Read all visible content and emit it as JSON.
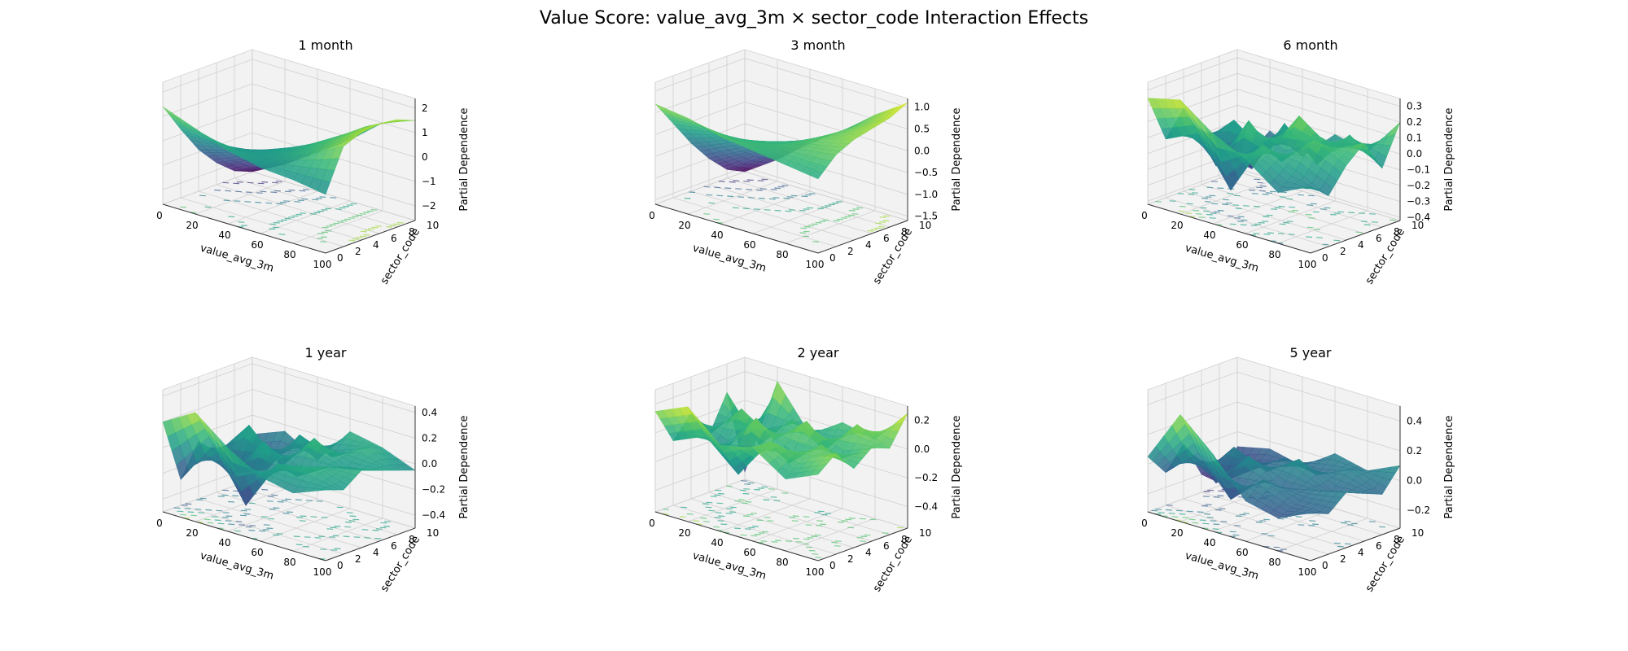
{
  "figure": {
    "title": "Value Score: value_avg_3m × sector_code Interaction Effects"
  },
  "colors": {
    "colormap": "viridis",
    "pane_fill": "#f2f2f2",
    "grid_line": "#d0d0d0",
    "axis_line": "#333333"
  },
  "chart_data": [
    {
      "type": "surface3d",
      "title": "1 month",
      "xlabel": "value_avg_3m",
      "ylabel": "sector_code",
      "zlabel": "Partial Dependence",
      "x_ticks": [
        "0",
        "20",
        "40",
        "60",
        "80",
        "100"
      ],
      "y_ticks": [
        "0",
        "2",
        "4",
        "6",
        "8",
        "10"
      ],
      "z_ticks": [
        "−2",
        "−1",
        "0",
        "1",
        "2"
      ],
      "xlim": [
        0,
        100
      ],
      "ylim": [
        0,
        10
      ],
      "zlim": [
        -2.6,
        2.4
      ],
      "x": [
        0,
        20,
        40,
        60,
        80,
        100
      ],
      "y": [
        0,
        2,
        4,
        6,
        8,
        10
      ],
      "z": [
        [
          1.4,
          0.2,
          -0.9,
          -1.7,
          -2.3,
          -2.6
        ],
        [
          0.9,
          0.1,
          -0.5,
          -1.1,
          -1.6,
          -1.9
        ],
        [
          0.4,
          0.1,
          -0.1,
          -0.4,
          -0.7,
          -1.0
        ],
        [
          0.1,
          0.3,
          0.4,
          0.3,
          0.1,
          -0.1
        ],
        [
          0.0,
          0.8,
          1.0,
          1.1,
          1.1,
          1.0
        ],
        [
          -0.2,
          1.5,
          1.8,
          1.9,
          1.8,
          1.5
        ]
      ],
      "contours": true
    },
    {
      "type": "surface3d",
      "title": "3 month",
      "xlabel": "value_avg_3m",
      "ylabel": "sector_code",
      "zlabel": "Partial Dependence",
      "x_ticks": [
        "0",
        "20",
        "40",
        "60",
        "80",
        "100"
      ],
      "y_ticks": [
        "0",
        "2",
        "4",
        "6",
        "8",
        "10"
      ],
      "z_ticks": [
        "−1.5",
        "−1.0",
        "−0.5",
        "0.0",
        "0.5",
        "1.0"
      ],
      "xlim": [
        0,
        100
      ],
      "ylim": [
        0,
        10
      ],
      "zlim": [
        -1.6,
        1.2
      ],
      "x": [
        0,
        20,
        40,
        60,
        80,
        100
      ],
      "y": [
        0,
        2,
        4,
        6,
        8,
        10
      ],
      "z": [
        [
          0.7,
          0.1,
          -0.5,
          -1.0,
          -1.4,
          -1.6
        ],
        [
          0.6,
          0.2,
          -0.2,
          -0.6,
          -0.9,
          -1.1
        ],
        [
          0.4,
          0.2,
          0.0,
          -0.2,
          -0.4,
          -0.5
        ],
        [
          0.3,
          0.3,
          0.2,
          0.1,
          0.0,
          0.0
        ],
        [
          0.2,
          0.4,
          0.5,
          0.5,
          0.5,
          0.6
        ],
        [
          0.1,
          0.5,
          0.7,
          0.8,
          0.9,
          1.1
        ]
      ],
      "contours": true
    },
    {
      "type": "surface3d",
      "title": "6 month",
      "xlabel": "value_avg_3m",
      "ylabel": "sector_code",
      "zlabel": "Partial Dependence",
      "x_ticks": [
        "0",
        "20",
        "40",
        "60",
        "80",
        "100"
      ],
      "y_ticks": [
        "0",
        "2",
        "4",
        "6",
        "8",
        "10"
      ],
      "z_ticks": [
        "−0.4",
        "−0.3",
        "−0.2",
        "−0.1",
        "0.0",
        "0.1",
        "0.2",
        "0.3"
      ],
      "xlim": [
        0,
        100
      ],
      "ylim": [
        0,
        10
      ],
      "zlim": [
        -0.42,
        0.35
      ],
      "x": [
        0,
        20,
        40,
        60,
        80,
        100
      ],
      "y": [
        0,
        2,
        4,
        6,
        8,
        10
      ],
      "z": [
        [
          0.25,
          -0.05,
          0.1,
          -0.15,
          -0.25,
          -0.38
        ],
        [
          0.3,
          0.05,
          -0.2,
          0.05,
          -0.3,
          -0.1
        ],
        [
          0.15,
          -0.25,
          0.15,
          -0.1,
          0.05,
          -0.2
        ],
        [
          0.05,
          0.1,
          -0.05,
          0.2,
          -0.15,
          0.0
        ],
        [
          -0.1,
          0.0,
          0.15,
          0.05,
          0.1,
          -0.05
        ],
        [
          0.0,
          -0.1,
          0.05,
          0.15,
          -0.05,
          0.2
        ]
      ],
      "contours": true
    },
    {
      "type": "surface3d",
      "title": "1 year",
      "xlabel": "value_avg_3m",
      "ylabel": "sector_code",
      "zlabel": "Partial Dependence",
      "x_ticks": [
        "0",
        "20",
        "40",
        "60",
        "80",
        "100"
      ],
      "y_ticks": [
        "0",
        "2",
        "4",
        "6",
        "8",
        "10"
      ],
      "z_ticks": [
        "−0.4",
        "−0.2",
        "0.0",
        "0.2",
        "0.4"
      ],
      "xlim": [
        0,
        100
      ],
      "ylim": [
        0,
        10
      ],
      "zlim": [
        -0.5,
        0.45
      ],
      "x": [
        0,
        20,
        40,
        60,
        80,
        100
      ],
      "y": [
        0,
        2,
        4,
        6,
        8,
        10
      ],
      "z": [
        [
          0.2,
          -0.3,
          -0.05,
          -0.2,
          -0.4,
          -0.15
        ],
        [
          0.35,
          0.05,
          -0.25,
          0.1,
          -0.3,
          -0.05
        ],
        [
          0.15,
          -0.35,
          0.1,
          -0.15,
          0.05,
          -0.2
        ],
        [
          0.0,
          0.05,
          -0.1,
          0.15,
          -0.05,
          0.1
        ],
        [
          -0.05,
          0.1,
          0.05,
          0.0,
          0.1,
          0.05
        ],
        [
          0.05,
          0.0,
          0.1,
          0.05,
          0.0,
          -0.05
        ]
      ],
      "contours": true
    },
    {
      "type": "surface3d",
      "title": "2 year",
      "xlabel": "value_avg_3m",
      "ylabel": "sector_code",
      "zlabel": "Partial Dependence",
      "x_ticks": [
        "0",
        "20",
        "40",
        "60",
        "80",
        "100"
      ],
      "y_ticks": [
        "0",
        "2",
        "4",
        "6",
        "8",
        "10"
      ],
      "z_ticks": [
        "−0.4",
        "−0.2",
        "0.0",
        "0.2"
      ],
      "xlim": [
        0,
        100
      ],
      "ylim": [
        0,
        10
      ],
      "zlim": [
        -0.55,
        0.3
      ],
      "x": [
        0,
        20,
        40,
        60,
        80,
        100
      ],
      "y": [
        0,
        2,
        4,
        6,
        8,
        10
      ],
      "z": [
        [
          0.15,
          -0.1,
          0.05,
          -0.15,
          0.1,
          -0.5
        ],
        [
          0.25,
          0.0,
          -0.15,
          0.1,
          -0.2,
          0.2
        ],
        [
          0.05,
          -0.2,
          0.15,
          -0.05,
          0.05,
          -0.1
        ],
        [
          0.1,
          0.1,
          -0.1,
          0.15,
          -0.1,
          0.05
        ],
        [
          -0.05,
          0.05,
          0.1,
          -0.05,
          0.15,
          0.0
        ],
        [
          0.05,
          0.15,
          0.0,
          0.1,
          0.05,
          0.25
        ]
      ],
      "contours": true
    },
    {
      "type": "surface3d",
      "title": "5 year",
      "xlabel": "value_avg_3m",
      "ylabel": "sector_code",
      "zlabel": "Partial Dependence",
      "x_ticks": [
        "0",
        "20",
        "40",
        "60",
        "80",
        "100"
      ],
      "y_ticks": [
        "0",
        "2",
        "4",
        "6",
        "8",
        "10"
      ],
      "z_ticks": [
        "−0.2",
        "0.0",
        "0.2",
        "0.4"
      ],
      "xlim": [
        0,
        100
      ],
      "ylim": [
        0,
        10
      ],
      "zlim": [
        -0.32,
        0.5
      ],
      "x": [
        0,
        20,
        40,
        60,
        80,
        100
      ],
      "y": [
        0,
        2,
        4,
        6,
        8,
        10
      ],
      "z": [
        [
          0.05,
          -0.1,
          0.05,
          -0.2,
          -0.3,
          -0.1
        ],
        [
          0.4,
          0.1,
          -0.15,
          0.05,
          -0.15,
          -0.05
        ],
        [
          0.2,
          -0.15,
          0.1,
          -0.05,
          0.0,
          -0.1
        ],
        [
          -0.05,
          0.05,
          -0.05,
          0.1,
          -0.05,
          0.05
        ],
        [
          -0.1,
          -0.05,
          0.0,
          -0.05,
          0.05,
          0.0
        ],
        [
          0.0,
          -0.05,
          0.05,
          0.0,
          -0.05,
          0.1
        ]
      ],
      "contours": true
    }
  ]
}
